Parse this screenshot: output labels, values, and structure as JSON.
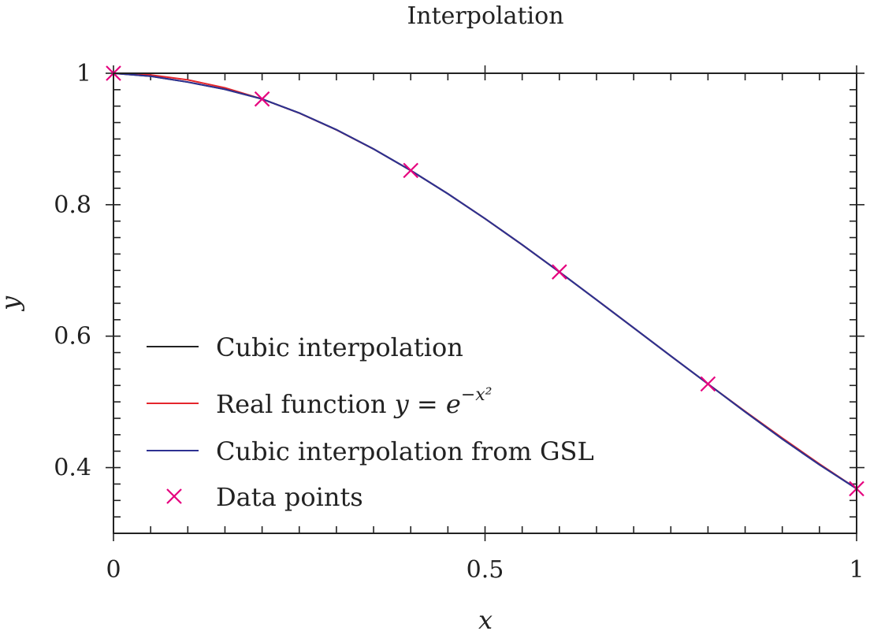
{
  "chart_data": {
    "type": "line",
    "title": "Interpolation",
    "xlabel": "x",
    "ylabel": "y",
    "xlim": [
      0,
      1
    ],
    "ylim": [
      0.3,
      1.0
    ],
    "xticks": [
      {
        "value": 0,
        "label": "0"
      },
      {
        "value": 0.5,
        "label": "0.5"
      },
      {
        "value": 1,
        "label": "1"
      }
    ],
    "yticks": [
      {
        "value": 1.0,
        "label": "1"
      },
      {
        "value": 0.8,
        "label": "0.8"
      },
      {
        "value": 0.6,
        "label": "0.6"
      },
      {
        "value": 0.4,
        "label": "0.4"
      }
    ],
    "grid": false,
    "legend_position": "lower-left",
    "legend": [
      {
        "label": "Cubic interpolation",
        "color": "#222222",
        "marker": "line"
      },
      {
        "label": "Real function ",
        "math_prefix": "y = e",
        "math_sup": "−x²",
        "color": "#e4262c",
        "marker": "line"
      },
      {
        "label": "Cubic interpolation from GSL",
        "color": "#2e3192",
        "marker": "line"
      },
      {
        "label": "Data points",
        "color": "#e6007e",
        "marker": "x"
      }
    ],
    "series": [
      {
        "name": "Real function y = e^(-x^2)",
        "color": "#e4262c",
        "x": [
          0,
          0.05,
          0.1,
          0.15,
          0.2,
          0.25,
          0.3,
          0.35,
          0.4,
          0.45,
          0.5,
          0.55,
          0.6,
          0.65,
          0.7,
          0.75,
          0.8,
          0.85,
          0.9,
          0.95,
          1.0
        ],
        "y": [
          1.0,
          0.9975,
          0.99,
          0.9778,
          0.9608,
          0.9394,
          0.9139,
          0.8847,
          0.8521,
          0.8167,
          0.7788,
          0.739,
          0.6977,
          0.6554,
          0.6126,
          0.5698,
          0.5273,
          0.4855,
          0.4449,
          0.4056,
          0.3679
        ]
      },
      {
        "name": "Cubic interpolation",
        "color": "#222222",
        "x": [
          0,
          0.05,
          0.1,
          0.15,
          0.2,
          0.25,
          0.3,
          0.35,
          0.4,
          0.45,
          0.5,
          0.55,
          0.6,
          0.65,
          0.7,
          0.75,
          0.8,
          0.85,
          0.9,
          0.95,
          1.0
        ],
        "y": [
          1.0,
          0.9955,
          0.9866,
          0.9756,
          0.9608,
          0.9396,
          0.9141,
          0.8848,
          0.8521,
          0.8166,
          0.7788,
          0.7391,
          0.6977,
          0.6553,
          0.6126,
          0.5698,
          0.5273,
          0.4848,
          0.4434,
          0.4043,
          0.3679
        ]
      },
      {
        "name": "Cubic interpolation from GSL",
        "color": "#2e3192",
        "x": [
          0,
          0.05,
          0.1,
          0.15,
          0.2,
          0.25,
          0.3,
          0.35,
          0.4,
          0.45,
          0.5,
          0.55,
          0.6,
          0.65,
          0.7,
          0.75,
          0.8,
          0.85,
          0.9,
          0.95,
          1.0
        ],
        "y": [
          1.0,
          0.9955,
          0.9866,
          0.9756,
          0.9608,
          0.9396,
          0.9141,
          0.8848,
          0.8521,
          0.8166,
          0.7788,
          0.7391,
          0.6977,
          0.6553,
          0.6126,
          0.5698,
          0.5273,
          0.4848,
          0.4434,
          0.4043,
          0.3679
        ]
      },
      {
        "name": "Data points",
        "color": "#e6007e",
        "marker": "x",
        "x": [
          0,
          0.2,
          0.4,
          0.6,
          0.8,
          1.0
        ],
        "y": [
          1.0,
          0.9608,
          0.8521,
          0.6977,
          0.5273,
          0.3679
        ]
      }
    ]
  }
}
